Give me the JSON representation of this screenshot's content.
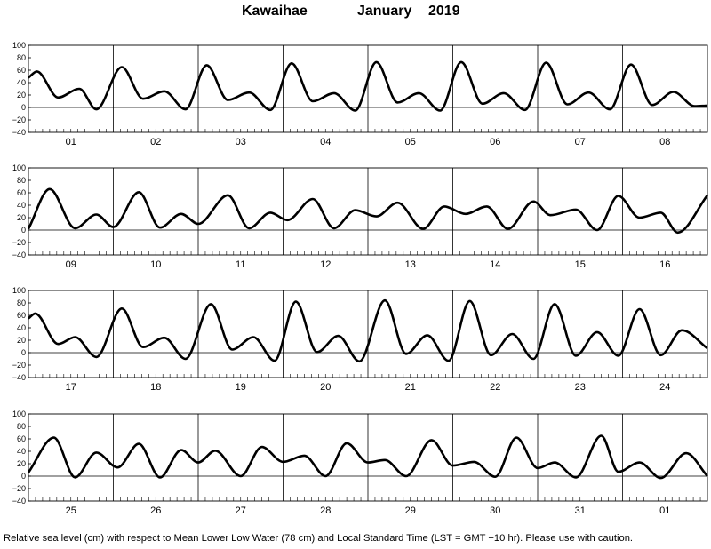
{
  "title": {
    "location": "Kawaihae",
    "month": "January",
    "year": "2019"
  },
  "footnote": "Relative sea level (cm) with respect to Mean Lower Low Water (78 cm) and Local Standard Time (LST = GMT −10 hr). Please use with caution.",
  "chart_data": [
    {
      "type": "line",
      "title": "",
      "xlabel": "",
      "ylabel": "",
      "ylim": [
        -40,
        100
      ],
      "yticks": [
        "100",
        "80",
        "60",
        "40",
        "20",
        "0",
        "−20",
        "−40"
      ],
      "categories": [
        "01",
        "02",
        "03",
        "04",
        "05",
        "06",
        "07",
        "08"
      ],
      "grid": "vertical day separators",
      "series": [
        {
          "x": [
            0,
            0.1,
            0.35,
            0.6,
            0.8,
            1.1,
            1.35,
            1.6,
            1.85,
            2.1,
            2.35,
            2.6,
            2.85,
            3.1,
            3.35,
            3.6,
            3.85,
            4.1,
            4.35,
            4.6,
            4.85,
            5.1,
            5.35,
            5.6,
            5.85,
            6.1,
            6.35,
            6.6,
            6.85,
            7.1,
            7.35,
            7.6,
            7.85,
            8.0
          ],
          "values": [
            48,
            58,
            16,
            30,
            -3,
            65,
            14,
            26,
            -3,
            68,
            12,
            24,
            -4,
            71,
            10,
            23,
            -5,
            73,
            8,
            23,
            -5,
            73,
            6,
            23,
            -4,
            72,
            5,
            24,
            -3,
            69,
            4,
            25,
            2,
            3
          ]
        }
      ]
    },
    {
      "type": "line",
      "title": "",
      "xlabel": "",
      "ylabel": "",
      "ylim": [
        -40,
        100
      ],
      "yticks": [
        "100",
        "80",
        "60",
        "40",
        "20",
        "0",
        "−20",
        "−40"
      ],
      "categories": [
        "09",
        "10",
        "11",
        "12",
        "13",
        "14",
        "15",
        "16"
      ],
      "grid": "vertical day separators",
      "series": [
        {
          "x": [
            0,
            0.25,
            0.55,
            0.8,
            1.0,
            1.3,
            1.55,
            1.8,
            2.0,
            2.35,
            2.6,
            2.85,
            3.05,
            3.35,
            3.6,
            3.85,
            4.1,
            4.35,
            4.65,
            4.9,
            5.15,
            5.4,
            5.65,
            5.95,
            6.15,
            6.45,
            6.7,
            6.95,
            7.2,
            7.45,
            7.65,
            8.0
          ],
          "values": [
            2,
            66,
            3,
            25,
            5,
            61,
            4,
            26,
            10,
            56,
            3,
            28,
            16,
            50,
            3,
            32,
            22,
            44,
            2,
            38,
            26,
            38,
            2,
            46,
            24,
            33,
            0,
            55,
            20,
            28,
            -4,
            56
          ]
        }
      ]
    },
    {
      "type": "line",
      "title": "",
      "xlabel": "",
      "ylabel": "",
      "ylim": [
        -40,
        100
      ],
      "yticks": [
        "100",
        "80",
        "60",
        "40",
        "20",
        "0",
        "−20",
        "−40"
      ],
      "categories": [
        "17",
        "18",
        "19",
        "20",
        "21",
        "22",
        "23",
        "24"
      ],
      "grid": "vertical day separators",
      "series": [
        {
          "x": [
            0,
            0.08,
            0.35,
            0.55,
            0.8,
            1.1,
            1.35,
            1.6,
            1.85,
            2.15,
            2.4,
            2.65,
            2.9,
            3.15,
            3.4,
            3.65,
            3.9,
            4.2,
            4.45,
            4.7,
            4.95,
            5.2,
            5.45,
            5.7,
            5.95,
            6.2,
            6.45,
            6.7,
            6.95,
            7.2,
            7.45,
            7.7,
            8.0
          ],
          "values": [
            55,
            63,
            14,
            25,
            -7,
            71,
            9,
            24,
            -10,
            78,
            5,
            25,
            -13,
            82,
            1,
            27,
            -14,
            84,
            -2,
            28,
            -13,
            83,
            -4,
            30,
            -10,
            78,
            -5,
            33,
            -5,
            70,
            -4,
            36,
            7
          ]
        }
      ]
    },
    {
      "type": "line",
      "title": "",
      "xlabel": "",
      "ylabel": "",
      "ylim": [
        -40,
        100
      ],
      "yticks": [
        "100",
        "80",
        "60",
        "40",
        "20",
        "0",
        "−20",
        "−40"
      ],
      "categories": [
        "25",
        "26",
        "27",
        "28",
        "29",
        "30",
        "31",
        "01"
      ],
      "grid": "vertical day separators",
      "series": [
        {
          "x": [
            0,
            0.3,
            0.55,
            0.8,
            1.05,
            1.3,
            1.55,
            1.8,
            2.0,
            2.2,
            2.5,
            2.75,
            3.0,
            3.25,
            3.5,
            3.75,
            4.0,
            4.2,
            4.45,
            4.75,
            5.0,
            5.25,
            5.5,
            5.75,
            6.0,
            6.2,
            6.45,
            6.75,
            6.95,
            7.2,
            7.45,
            7.75,
            8.0
          ],
          "values": [
            6,
            62,
            -2,
            38,
            14,
            52,
            -2,
            42,
            22,
            41,
            0,
            47,
            23,
            33,
            0,
            53,
            22,
            26,
            0,
            58,
            17,
            23,
            -1,
            62,
            13,
            22,
            -2,
            65,
            7,
            22,
            -3,
            37,
            0
          ]
        }
      ]
    }
  ]
}
